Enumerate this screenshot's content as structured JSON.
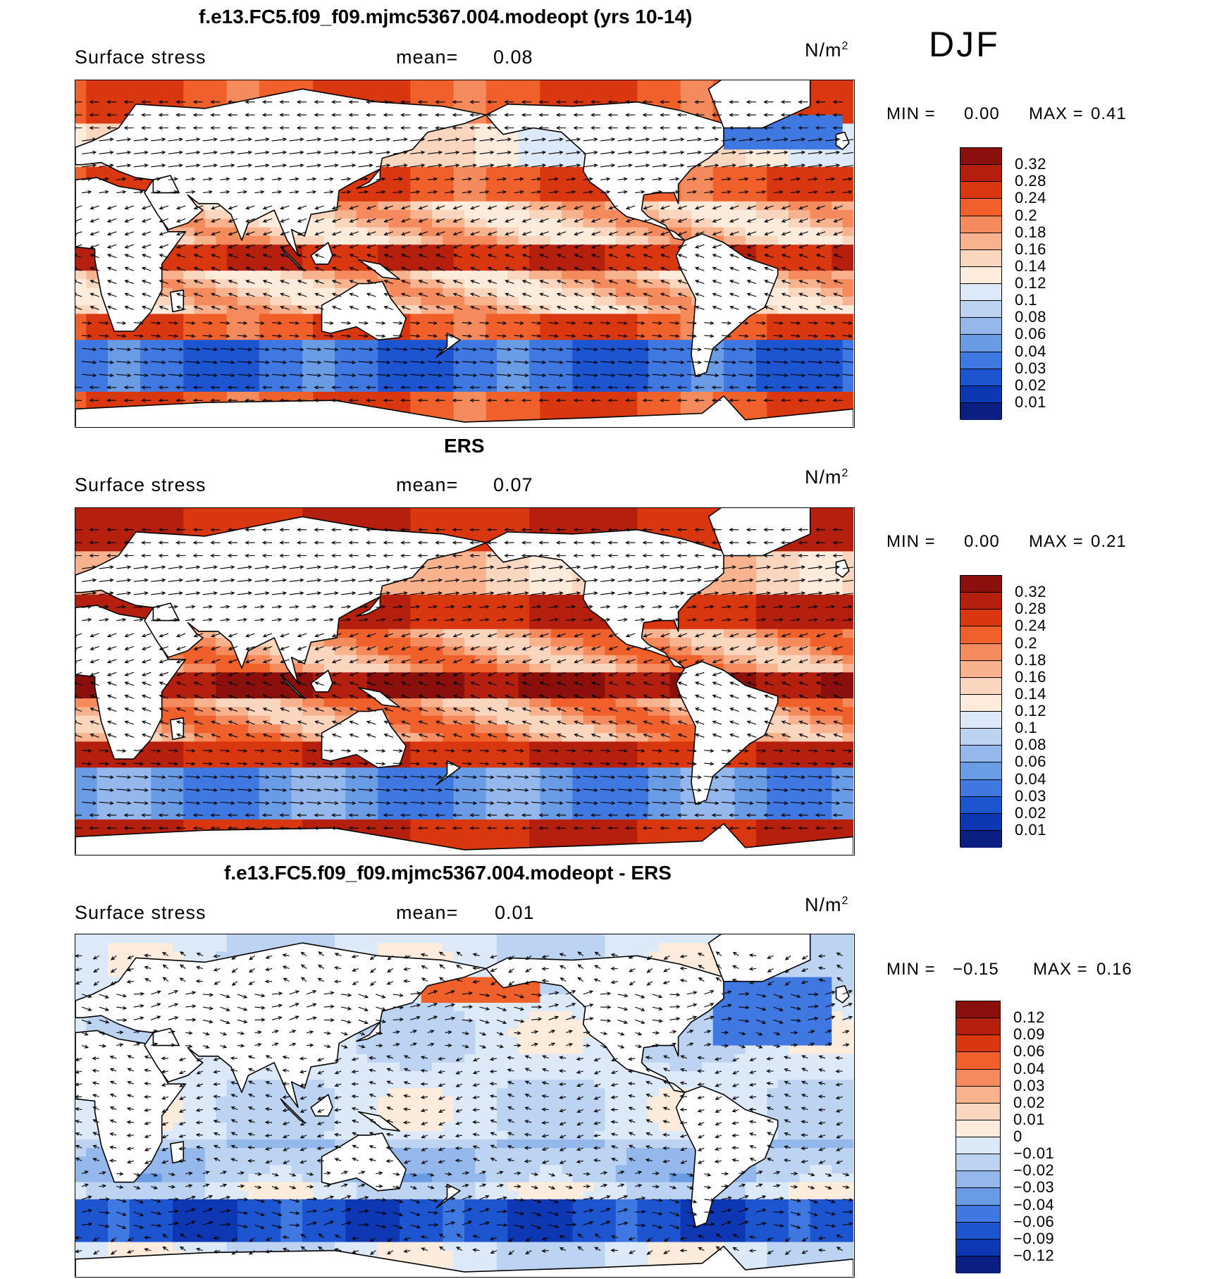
{
  "season": "DJF",
  "panels": [
    {
      "id": "model",
      "title": "f.e13.FC5.f09_f09.mjmc5367.004.modeopt (yrs 10-14)",
      "variable": "Surface stress",
      "mean_label": "mean=",
      "mean_value": "0.08",
      "units_base": "N/m",
      "units_exp": "2",
      "min_label": "MIN =",
      "min_value": "0.00",
      "max_label": "MAX =",
      "max_value": "0.41",
      "levels": [
        "0.32",
        "0.28",
        "0.24",
        "0.2",
        "0.18",
        "0.16",
        "0.14",
        "0.12",
        "0.1",
        "0.08",
        "0.06",
        "0.04",
        "0.03",
        "0.02",
        "0.01"
      ],
      "colors": [
        "#8b0f0a",
        "#b5200e",
        "#d9370f",
        "#f0602a",
        "#f58a5c",
        "#f9b28e",
        "#fbd6bf",
        "#fdebdc",
        "#dce9f8",
        "#bdd3f2",
        "#94b8ec",
        "#6a9ce6",
        "#3f78e0",
        "#1d54d0",
        "#0d37b3",
        "#0b1f82"
      ],
      "chart_data": {
        "type": "heatmap",
        "field": "Surface stress",
        "units": "N/m2",
        "mean": 0.08,
        "min": 0.0,
        "max": 0.41,
        "contour_levels": [
          0.01,
          0.02,
          0.03,
          0.04,
          0.06,
          0.08,
          0.1,
          0.12,
          0.14,
          0.16,
          0.18,
          0.2,
          0.24,
          0.28,
          0.32
        ]
      }
    },
    {
      "id": "obs",
      "title": "ERS",
      "variable": "Surface stress",
      "mean_label": "mean=",
      "mean_value": "0.07",
      "units_base": "N/m",
      "units_exp": "2",
      "min_label": "MIN =",
      "min_value": "0.00",
      "max_label": "MAX =",
      "max_value": "0.21",
      "levels": [
        "0.32",
        "0.28",
        "0.24",
        "0.2",
        "0.18",
        "0.16",
        "0.14",
        "0.12",
        "0.1",
        "0.08",
        "0.06",
        "0.04",
        "0.03",
        "0.02",
        "0.01"
      ],
      "colors": [
        "#8b0f0a",
        "#b5200e",
        "#d9370f",
        "#f0602a",
        "#f58a5c",
        "#f9b28e",
        "#fbd6bf",
        "#fdebdc",
        "#dce9f8",
        "#bdd3f2",
        "#94b8ec",
        "#6a9ce6",
        "#3f78e0",
        "#1d54d0",
        "#0d37b3",
        "#0b1f82"
      ],
      "chart_data": {
        "type": "heatmap",
        "field": "Surface stress",
        "units": "N/m2",
        "mean": 0.07,
        "min": 0.0,
        "max": 0.21,
        "contour_levels": [
          0.01,
          0.02,
          0.03,
          0.04,
          0.06,
          0.08,
          0.1,
          0.12,
          0.14,
          0.16,
          0.18,
          0.2,
          0.24,
          0.28,
          0.32
        ]
      }
    },
    {
      "id": "diff",
      "title": "f.e13.FC5.f09_f09.mjmc5367.004.modeopt - ERS",
      "variable": "Surface stress",
      "mean_label": "mean=",
      "mean_value": "0.01",
      "units_base": "N/m",
      "units_exp": "2",
      "min_label": "MIN =",
      "min_value": "−0.15",
      "max_label": "MAX =",
      "max_value": "0.16",
      "levels": [
        "0.12",
        "0.09",
        "0.06",
        "0.04",
        "0.03",
        "0.02",
        "0.01",
        "0",
        "−0.01",
        "−0.02",
        "−0.03",
        "−0.04",
        "−0.06",
        "−0.09",
        "−0.12"
      ],
      "colors": [
        "#8b0f0a",
        "#b5200e",
        "#d9370f",
        "#f0602a",
        "#f58a5c",
        "#f9b28e",
        "#fbd6bf",
        "#fdebdc",
        "#dce9f8",
        "#bdd3f2",
        "#94b8ec",
        "#6a9ce6",
        "#3f78e0",
        "#1d54d0",
        "#0d37b3",
        "#0b1f82"
      ],
      "chart_data": {
        "type": "heatmap",
        "field": "Surface stress difference",
        "units": "N/m2",
        "mean": 0.01,
        "min": -0.15,
        "max": 0.16,
        "contour_levels": [
          -0.12,
          -0.09,
          -0.06,
          -0.04,
          -0.03,
          -0.02,
          -0.01,
          0,
          0.01,
          0.02,
          0.03,
          0.04,
          0.06,
          0.09,
          0.12
        ]
      }
    }
  ]
}
